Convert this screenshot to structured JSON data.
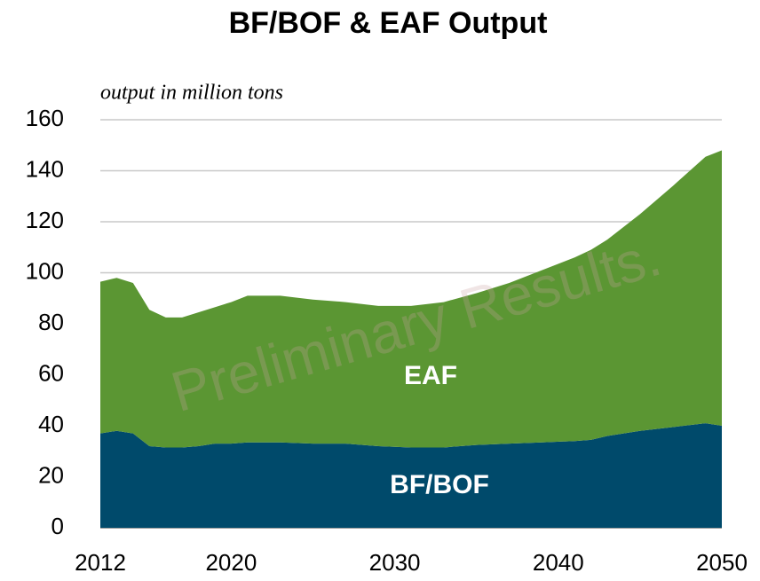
{
  "chart_data": {
    "type": "stacked_area",
    "title": "BF/BOF & EAF Output",
    "y_label": "output in million tons",
    "watermark": "Preliminary Results.",
    "x": [
      2012,
      2013,
      2014,
      2015,
      2016,
      2017,
      2018,
      2019,
      2020,
      2021,
      2023,
      2025,
      2027,
      2029,
      2031,
      2033,
      2035,
      2037,
      2039,
      2041,
      2042,
      2043,
      2045,
      2047,
      2049,
      2050
    ],
    "series": [
      {
        "name": "BF/BOF",
        "color": "#004a6b",
        "values": [
          37,
          38,
          37,
          32,
          31.5,
          31.5,
          32,
          33,
          33,
          33.5,
          33.5,
          33,
          33,
          32,
          31.5,
          31.5,
          32.5,
          33,
          33.5,
          34,
          34.5,
          36,
          38,
          39.5,
          41,
          40
        ]
      },
      {
        "name": "EAF",
        "color": "#5b9633",
        "values": [
          59.5,
          60,
          59,
          53.5,
          51,
          51,
          52.5,
          53.5,
          55.5,
          57.5,
          57.5,
          56.5,
          55.5,
          55,
          55.5,
          57,
          59.5,
          63,
          67.5,
          72,
          74.5,
          77,
          85,
          94.5,
          104.5,
          108
        ]
      }
    ],
    "xlim": [
      2012,
      2050
    ],
    "xticks": [
      2012,
      2020,
      2030,
      2040,
      2050
    ],
    "ylim": [
      0,
      160
    ],
    "yticks": [
      0,
      20,
      40,
      60,
      80,
      100,
      120,
      140,
      160
    ],
    "grid": true
  }
}
